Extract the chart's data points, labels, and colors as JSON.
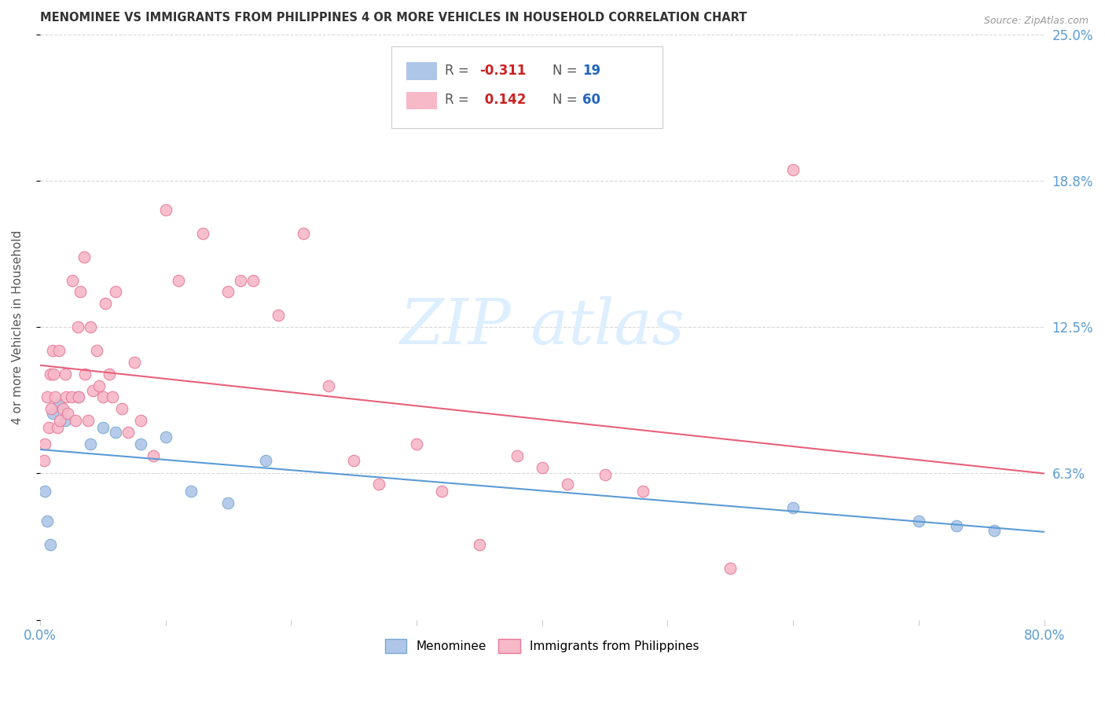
{
  "title": "MENOMINEE VS IMMIGRANTS FROM PHILIPPINES 4 OR MORE VEHICLES IN HOUSEHOLD CORRELATION CHART",
  "source": "Source: ZipAtlas.com",
  "ylabel": "4 or more Vehicles in Household",
  "xmin": 0.0,
  "xmax": 80.0,
  "ymin": 0.0,
  "ymax": 25.0,
  "menominee_color": "#aec6e8",
  "menominee_edge_color": "#7aaad0",
  "philippines_color": "#f7b8c8",
  "philippines_edge_color": "#e87898",
  "menominee_line_color": "#5b9bd5",
  "philippines_line_color": "#e8607a",
  "legend_R_menominee": "-0.311",
  "legend_N_menominee": "19",
  "legend_R_philippines": "0.142",
  "legend_N_philippines": "60",
  "background_color": "#ffffff",
  "grid_color": "#d8d8d8",
  "right_axis_color": "#5b9bd5",
  "watermark_color": "#ddeeff",
  "title_color": "#333333",
  "source_color": "#999999",
  "menominee_x": [
    0.4,
    0.6,
    0.8,
    1.0,
    1.5,
    2.0,
    3.0,
    4.0,
    5.0,
    6.0,
    8.0,
    10.0,
    12.0,
    15.0,
    18.0,
    60.0,
    70.0,
    73.0,
    76.0
  ],
  "menominee_y": [
    5.5,
    4.2,
    3.2,
    8.8,
    9.2,
    8.5,
    9.5,
    7.5,
    8.2,
    8.0,
    7.5,
    7.8,
    5.5,
    5.0,
    6.8,
    4.8,
    4.2,
    4.0,
    3.8
  ],
  "philippines_x": [
    0.3,
    0.4,
    0.6,
    0.7,
    0.8,
    0.9,
    1.0,
    1.1,
    1.2,
    1.4,
    1.5,
    1.6,
    1.8,
    2.0,
    2.1,
    2.2,
    2.5,
    2.6,
    2.8,
    3.0,
    3.1,
    3.2,
    3.5,
    3.6,
    3.8,
    4.0,
    4.2,
    4.5,
    4.7,
    5.0,
    5.2,
    5.5,
    5.8,
    6.0,
    6.5,
    7.0,
    7.5,
    8.0,
    9.0,
    10.0,
    11.0,
    13.0,
    15.0,
    16.0,
    17.0,
    19.0,
    21.0,
    23.0,
    25.0,
    27.0,
    30.0,
    32.0,
    35.0,
    38.0,
    40.0,
    42.0,
    45.0,
    48.0,
    55.0,
    60.0
  ],
  "philippines_y": [
    6.8,
    7.5,
    9.5,
    8.2,
    10.5,
    9.0,
    11.5,
    10.5,
    9.5,
    8.2,
    11.5,
    8.5,
    9.0,
    10.5,
    9.5,
    8.8,
    9.5,
    14.5,
    8.5,
    12.5,
    9.5,
    14.0,
    15.5,
    10.5,
    8.5,
    12.5,
    9.8,
    11.5,
    10.0,
    9.5,
    13.5,
    10.5,
    9.5,
    14.0,
    9.0,
    8.0,
    11.0,
    8.5,
    7.0,
    17.5,
    14.5,
    16.5,
    14.0,
    14.5,
    14.5,
    13.0,
    16.5,
    10.0,
    6.8,
    5.8,
    7.5,
    5.5,
    3.2,
    7.0,
    6.5,
    5.8,
    6.2,
    5.5,
    2.2,
    19.2
  ],
  "xtick_positions": [
    0,
    10,
    20,
    30,
    40,
    50,
    60,
    70,
    80
  ],
  "ytick_positions": [
    0,
    6.25,
    12.5,
    18.75,
    25.0
  ],
  "right_ytick_labels": [
    "",
    "6.3%",
    "12.5%",
    "18.8%",
    "25.0%"
  ]
}
